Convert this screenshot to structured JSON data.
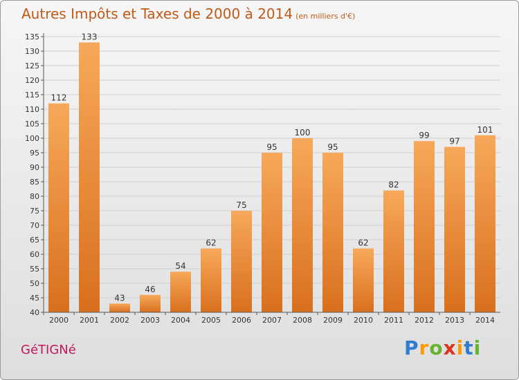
{
  "title": "Autres Impôts et Taxes de 2000 à 2014",
  "subtitle": "(en milliers d'€)",
  "commune": "GéTIGNé",
  "brand": {
    "text": "Proxiti",
    "letters": [
      "P",
      "r",
      "o",
      "x",
      "i",
      "t",
      "i"
    ],
    "colors": [
      "#2e7dd1",
      "#ff9900",
      "#66b32e",
      "#e0301e",
      "#ff9900",
      "#2e7dd1",
      "#66b32e"
    ]
  },
  "colors": {
    "bar_top": "#f7a85a",
    "bar_bottom": "#d8701e",
    "title": "#c05a18",
    "commune": "#c2185b"
  },
  "chart_data": {
    "type": "bar",
    "categories": [
      "2000",
      "2001",
      "2002",
      "2003",
      "2004",
      "2005",
      "2006",
      "2007",
      "2008",
      "2009",
      "2010",
      "2011",
      "2012",
      "2013",
      "2014"
    ],
    "values": [
      112,
      133,
      43,
      46,
      54,
      62,
      75,
      95,
      100,
      95,
      62,
      82,
      99,
      97,
      101
    ],
    "ylim": [
      40,
      135
    ],
    "ytick_step": 5,
    "grid": true
  }
}
